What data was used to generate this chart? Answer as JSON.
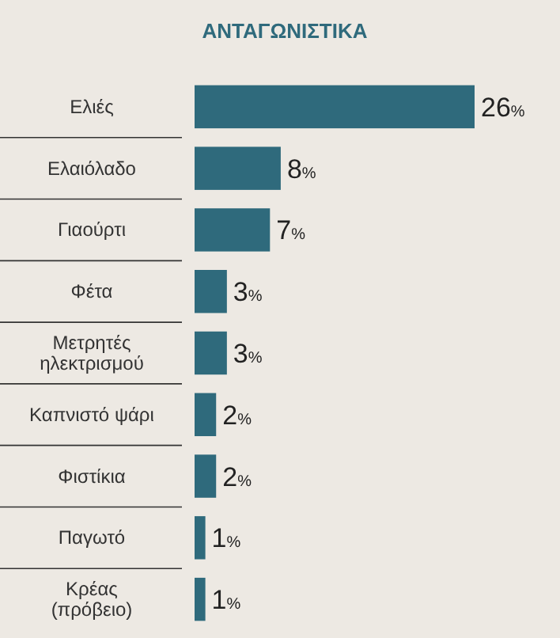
{
  "chart_data": {
    "type": "bar",
    "orientation": "horizontal",
    "title": "ΑΝΤΑΓΩΝΙΣΤΙΚΑ",
    "categories": [
      "Ελιές",
      "Ελαιόλαδο",
      "Γιαούρτι",
      "Φέτα",
      "Μετρητές\nηλεκτρισμού",
      "Καπνιστό ψάρι",
      "Φιστίκια",
      "Παγωτό",
      "Κρέας\n(πρόβειο)"
    ],
    "values": [
      26,
      8,
      7,
      3,
      3,
      2,
      2,
      1,
      1
    ],
    "value_labels": [
      "26%",
      "8%",
      "7%",
      "3%",
      "3%",
      "2%",
      "2%",
      "1%",
      "1%"
    ],
    "color": "#2f6a7c"
  }
}
